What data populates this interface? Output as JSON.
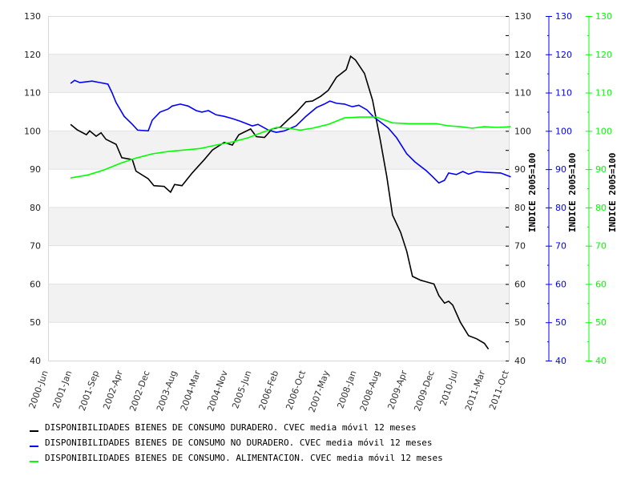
{
  "chart_data": {
    "type": "line",
    "title": "",
    "xlabel": "",
    "x_unit": "decimal year",
    "xlim": [
      2000.417,
      2011.75
    ],
    "ylim": [
      40,
      130
    ],
    "y_ticks": [
      40,
      50,
      60,
      70,
      80,
      90,
      100,
      110,
      120,
      130
    ],
    "x_tick_labels": [
      {
        "label": "2000-Jun",
        "x": 2000.417
      },
      {
        "label": "2001-Jan",
        "x": 2001.0
      },
      {
        "label": "2001-Sep",
        "x": 2001.667
      },
      {
        "label": "2002-Apr",
        "x": 2002.25
      },
      {
        "label": "2002-Dec",
        "x": 2002.917
      },
      {
        "label": "2003-Aug",
        "x": 2003.583
      },
      {
        "label": "2004-Mar",
        "x": 2004.167
      },
      {
        "label": "2004-Nov",
        "x": 2004.833
      },
      {
        "label": "2005-Jun",
        "x": 2005.417
      },
      {
        "label": "2006-Feb",
        "x": 2006.083
      },
      {
        "label": "2006-Oct",
        "x": 2006.75
      },
      {
        "label": "2007-May",
        "x": 2007.333
      },
      {
        "label": "2008-Jan",
        "x": 2008.0
      },
      {
        "label": "2008-Aug",
        "x": 2008.583
      },
      {
        "label": "2009-Apr",
        "x": 2009.25
      },
      {
        "label": "2009-Dec",
        "x": 2009.917
      },
      {
        "label": "2010-Jul",
        "x": 2010.5
      },
      {
        "label": "2011-Mar",
        "x": 2011.167
      },
      {
        "label": "2011-Oct",
        "x": 2011.75
      }
    ],
    "bands": [
      [
        110,
        120
      ],
      [
        90,
        100
      ],
      [
        70,
        80
      ],
      [
        50,
        60
      ]
    ],
    "grid": true,
    "legend_placement": "bottom",
    "right_axes": [
      {
        "label": "INDICE 2005=100",
        "color": "#000000"
      },
      {
        "label": "INDICE 2005=100",
        "color": "#0000ff"
      },
      {
        "label": "INDICE 2005=100",
        "color": "#00ff00"
      }
    ],
    "series": [
      {
        "name": "DISPONIBILIDADES BIENES DE CONSUMO DURADERO. CVEC media móvil 12 meses",
        "color": "#000000",
        "points": [
          [
            2000.97,
            101.7
          ],
          [
            2001.13,
            100.3
          ],
          [
            2001.36,
            99
          ],
          [
            2001.44,
            100
          ],
          [
            2001.6,
            98.6
          ],
          [
            2001.72,
            99.5
          ],
          [
            2001.84,
            97.8
          ],
          [
            2002.09,
            96.5
          ],
          [
            2002.23,
            93
          ],
          [
            2002.49,
            92.5
          ],
          [
            2002.58,
            89.5
          ],
          [
            2002.88,
            87.5
          ],
          [
            2003.02,
            85.7
          ],
          [
            2003.27,
            85.5
          ],
          [
            2003.43,
            84
          ],
          [
            2003.53,
            86
          ],
          [
            2003.71,
            85.7
          ],
          [
            2003.96,
            89
          ],
          [
            2004.26,
            92.5
          ],
          [
            2004.46,
            95
          ],
          [
            2004.75,
            97
          ],
          [
            2004.95,
            96.3
          ],
          [
            2005.11,
            99
          ],
          [
            2005.4,
            100.5
          ],
          [
            2005.54,
            98.5
          ],
          [
            2005.74,
            98.3
          ],
          [
            2005.93,
            100.5
          ],
          [
            2006.13,
            101
          ],
          [
            2006.33,
            103
          ],
          [
            2006.52,
            104.8
          ],
          [
            2006.76,
            107.6
          ],
          [
            2006.92,
            107.8
          ],
          [
            2007.12,
            109
          ],
          [
            2007.31,
            110.6
          ],
          [
            2007.51,
            114
          ],
          [
            2007.75,
            116
          ],
          [
            2007.86,
            119.5
          ],
          [
            2007.98,
            118.5
          ],
          [
            2008.2,
            115
          ],
          [
            2008.4,
            108
          ],
          [
            2008.59,
            97.5
          ],
          [
            2008.75,
            88
          ],
          [
            2008.89,
            78
          ],
          [
            2009.09,
            73.5
          ],
          [
            2009.24,
            68.5
          ],
          [
            2009.38,
            62
          ],
          [
            2009.58,
            61
          ],
          [
            2009.68,
            60.7
          ],
          [
            2009.91,
            60
          ],
          [
            2010.03,
            57
          ],
          [
            2010.17,
            55
          ],
          [
            2010.27,
            55.5
          ],
          [
            2010.37,
            54.5
          ],
          [
            2010.56,
            50
          ],
          [
            2010.76,
            46.5
          ],
          [
            2010.96,
            45.7
          ],
          [
            2011.15,
            44.5
          ],
          [
            2011.25,
            43
          ]
        ]
      },
      {
        "name": "DISPONIBILIDADES BIENES DE CONSUMO NO DURADERO. CVEC media móvil 12 meses",
        "color": "#0000ff",
        "points": [
          [
            2000.97,
            112.4
          ],
          [
            2001.07,
            113.2
          ],
          [
            2001.2,
            112.6
          ],
          [
            2001.5,
            113
          ],
          [
            2001.7,
            112.6
          ],
          [
            2001.89,
            112.2
          ],
          [
            2001.99,
            110
          ],
          [
            2002.09,
            107.4
          ],
          [
            2002.29,
            103.8
          ],
          [
            2002.49,
            101.7
          ],
          [
            2002.62,
            100.2
          ],
          [
            2002.88,
            100
          ],
          [
            2002.98,
            102.8
          ],
          [
            2003.17,
            104.9
          ],
          [
            2003.37,
            105.7
          ],
          [
            2003.47,
            106.5
          ],
          [
            2003.67,
            107
          ],
          [
            2003.86,
            106.5
          ],
          [
            2004.06,
            105.3
          ],
          [
            2004.2,
            104.9
          ],
          [
            2004.36,
            105.3
          ],
          [
            2004.55,
            104.2
          ],
          [
            2004.75,
            103.8
          ],
          [
            2004.95,
            103.2
          ],
          [
            2005.15,
            102.5
          ],
          [
            2005.44,
            101.3
          ],
          [
            2005.58,
            101.7
          ],
          [
            2005.84,
            100.2
          ],
          [
            2006.03,
            99.6
          ],
          [
            2006.23,
            100
          ],
          [
            2006.52,
            101.3
          ],
          [
            2006.76,
            103.8
          ],
          [
            2007.02,
            106.1
          ],
          [
            2007.21,
            107
          ],
          [
            2007.35,
            107.8
          ],
          [
            2007.51,
            107.2
          ],
          [
            2007.71,
            107
          ],
          [
            2007.9,
            106.3
          ],
          [
            2008.06,
            106.7
          ],
          [
            2008.26,
            105.5
          ],
          [
            2008.41,
            103.8
          ],
          [
            2008.59,
            102.3
          ],
          [
            2008.79,
            100.7
          ],
          [
            2008.99,
            98.2
          ],
          [
            2009.24,
            94
          ],
          [
            2009.44,
            91.9
          ],
          [
            2009.72,
            89.6
          ],
          [
            2009.87,
            88.1
          ],
          [
            2010.03,
            86.4
          ],
          [
            2010.17,
            87.1
          ],
          [
            2010.27,
            89
          ],
          [
            2010.46,
            88.6
          ],
          [
            2010.62,
            89.4
          ],
          [
            2010.76,
            88.7
          ],
          [
            2010.96,
            89.4
          ],
          [
            2011.15,
            89.2
          ],
          [
            2011.55,
            89
          ],
          [
            2011.8,
            88
          ]
        ]
      },
      {
        "name": "DISPONIBILIDADES BIENES DE CONSUMO. ALIMENTACION. CVEC media móvil 12 meses",
        "color": "#00ff00",
        "points": [
          [
            2000.97,
            87.7
          ],
          [
            2001.4,
            88.5
          ],
          [
            2001.79,
            89.8
          ],
          [
            2002.19,
            91.5
          ],
          [
            2002.58,
            92.9
          ],
          [
            2002.98,
            94
          ],
          [
            2003.37,
            94.6
          ],
          [
            2003.77,
            95
          ],
          [
            2004.16,
            95.4
          ],
          [
            2004.55,
            96.3
          ],
          [
            2004.95,
            97.1
          ],
          [
            2005.34,
            98.2
          ],
          [
            2005.74,
            99.8
          ],
          [
            2006.03,
            100.9
          ],
          [
            2006.33,
            100.7
          ],
          [
            2006.62,
            100.2
          ],
          [
            2006.92,
            100.7
          ],
          [
            2007.31,
            101.7
          ],
          [
            2007.71,
            103.4
          ],
          [
            2008.1,
            103.6
          ],
          [
            2008.49,
            103.6
          ],
          [
            2008.89,
            102.1
          ],
          [
            2009.28,
            101.9
          ],
          [
            2009.68,
            101.9
          ],
          [
            2009.97,
            101.9
          ],
          [
            2010.27,
            101.3
          ],
          [
            2010.56,
            101.1
          ],
          [
            2010.85,
            100.7
          ],
          [
            2011.15,
            101.1
          ],
          [
            2011.45,
            100.9
          ],
          [
            2011.8,
            101.1
          ]
        ]
      }
    ]
  }
}
